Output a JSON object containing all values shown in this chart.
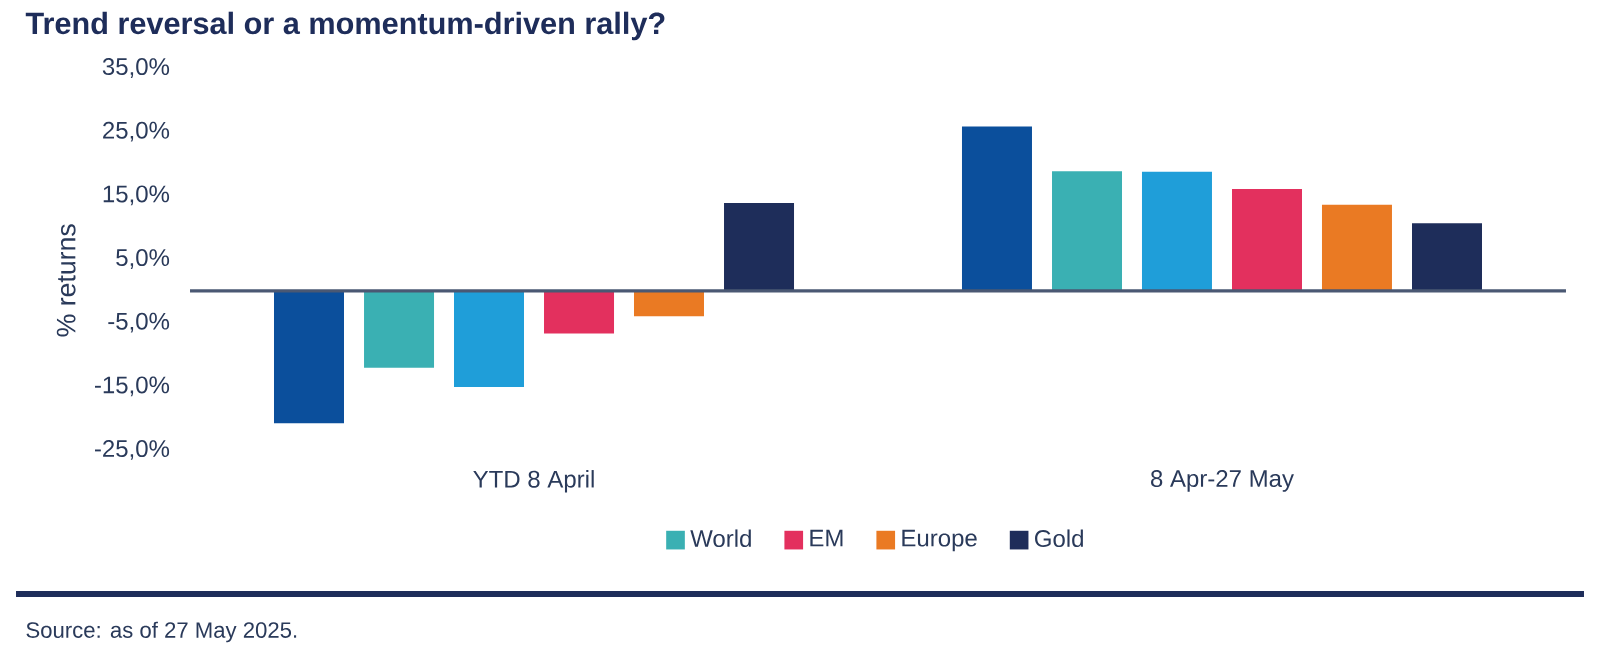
{
  "chart_data": {
    "type": "bar",
    "title": "Trend reversal or a momentum-driven rally?",
    "ylabel": "% returns",
    "categories": [
      "YTD 8 April",
      "8 Apr-27 May"
    ],
    "series": [
      {
        "color": "#0b4f9c",
        "values": [
          -20.8,
          25.8
        ]
      },
      {
        "name": "World",
        "color": "#3ab0b3",
        "values": [
          -12.1,
          18.8
        ]
      },
      {
        "color": "#1f9ed9",
        "values": [
          -15.1,
          18.7
        ]
      },
      {
        "name": "EM",
        "color": "#e3305e",
        "values": [
          -6.7,
          16.0
        ]
      },
      {
        "name": "Europe",
        "color": "#ea7a23",
        "values": [
          -4.0,
          13.5
        ]
      },
      {
        "name": "Gold",
        "color": "#1e2d5a",
        "values": [
          13.8,
          10.6
        ]
      }
    ],
    "ylim": [
      -25,
      35
    ],
    "yticks": [
      {
        "value": -25,
        "label": "-25,0%"
      },
      {
        "value": -15,
        "label": "-15,0%"
      },
      {
        "value": -5,
        "label": "-5,0%"
      },
      {
        "value": 5,
        "label": "5,0%"
      },
      {
        "value": 15,
        "label": "15,0%"
      },
      {
        "value": 25,
        "label": "25,0%"
      },
      {
        "value": 35,
        "label": "35,0%"
      }
    ],
    "legend": "bottom",
    "ref_lines": [
      {
        "axis": "y",
        "value": 0,
        "color": "#4a5873"
      }
    ],
    "annotations": [
      "Source: as of 27 May 2025."
    ]
  }
}
